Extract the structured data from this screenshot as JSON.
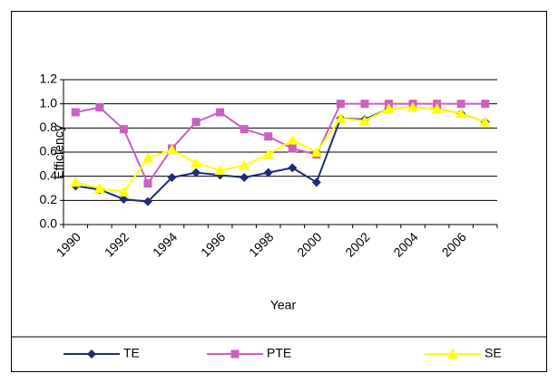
{
  "chart_data": {
    "type": "line",
    "x_label": "Year",
    "y_label": "Efficiency",
    "categories": [
      "1990",
      null,
      "1992",
      null,
      "1994",
      null,
      "1996",
      null,
      "1998",
      null,
      "2000",
      null,
      "2002",
      null,
      "2004",
      null,
      "2006",
      null
    ],
    "series": [
      {
        "name": "TE",
        "color": "#1f2a7a",
        "marker": "diamond",
        "values": [
          0.32,
          0.29,
          0.21,
          0.19,
          0.39,
          0.43,
          0.41,
          0.39,
          0.43,
          0.47,
          0.35,
          0.88,
          0.87,
          0.96,
          0.97,
          0.96,
          0.92,
          0.85
        ]
      },
      {
        "name": "PTE",
        "color": "#cc5fc0",
        "marker": "square",
        "values": [
          0.93,
          0.97,
          0.79,
          0.34,
          0.63,
          0.85,
          0.93,
          0.79,
          0.73,
          0.63,
          0.58,
          1.0,
          1.0,
          1.0,
          1.0,
          1.0,
          1.0,
          1.0
        ]
      },
      {
        "name": "SE",
        "color": "#ffff00",
        "marker": "triangle",
        "values": [
          0.35,
          0.3,
          0.27,
          0.55,
          0.62,
          0.51,
          0.45,
          0.49,
          0.58,
          0.7,
          0.6,
          0.88,
          0.86,
          0.96,
          0.97,
          0.96,
          0.92,
          0.85
        ]
      }
    ],
    "ylim": [
      0,
      1.2
    ],
    "yticks": [
      {
        "value": 0,
        "label": "0.0"
      },
      0.2,
      0.4,
      0.6,
      0.8,
      {
        "value": 1,
        "label": "1.0"
      },
      1.2
    ],
    "grid": true,
    "legend": "bottom"
  }
}
